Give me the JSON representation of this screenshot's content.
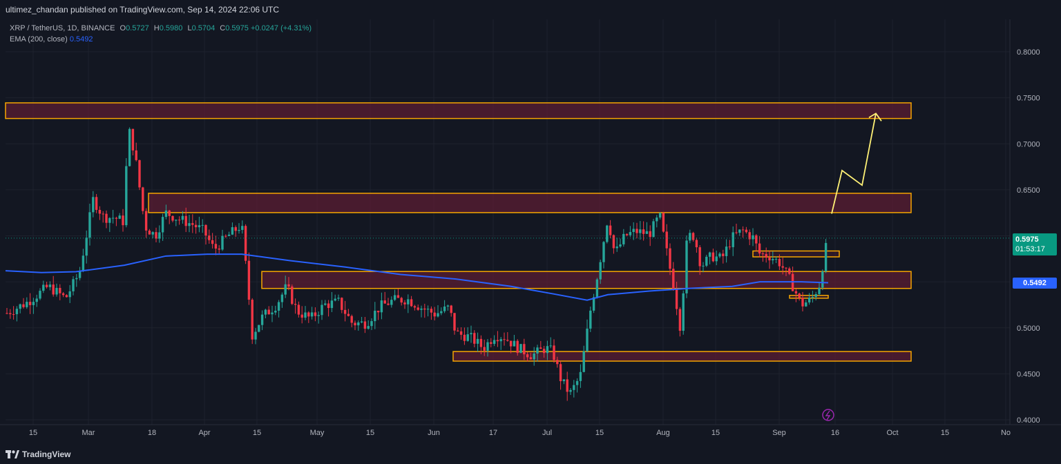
{
  "header": {
    "publish_text": "ultimez_chandan published on TradingView.com, Sep 14, 2024 22:06 UTC"
  },
  "legend": {
    "symbol": "XRP / TetherUS, 1D, BINANCE",
    "open_label": "O",
    "open": "0.5727",
    "high_label": "H",
    "high": "0.5980",
    "low_label": "L",
    "low": "0.5704",
    "close_label": "C",
    "close": "0.5975",
    "change": "+0.0247 (+4.31%)",
    "ema_label": "EMA (200, close)",
    "ema_value": "0.5492"
  },
  "price_scale": {
    "last_price": "0.5975",
    "countdown": "01:53:17",
    "ema_tag": "0.5492"
  },
  "footer": {
    "brand": "TradingView"
  },
  "colors": {
    "bull": "#26a69a",
    "bear": "#f23645",
    "ema": "#2962ff",
    "zone_border": "#f7a600",
    "zone_fill": "#5b1e33",
    "arrow": "#fff176",
    "background": "#131722"
  },
  "chart_data": {
    "type": "candlestick",
    "symbol": "XRP / TetherUS",
    "timeframe": "1D",
    "exchange": "BINANCE",
    "ylim": [
      0.4,
      0.8
    ],
    "y_ticks": [
      "0.8000",
      "0.7500",
      "0.7000",
      "0.6500",
      "0.5000",
      "0.4500",
      "0.4000"
    ],
    "x_ticks": [
      "15",
      "Mar",
      "18",
      "Apr",
      "15",
      "May",
      "15",
      "Jun",
      "17",
      "Jul",
      "15",
      "Aug",
      "15",
      "Sep",
      "16",
      "Oct",
      "15",
      "No"
    ],
    "ema": {
      "name": "EMA (200, close)",
      "last": 0.5492
    },
    "last_close": 0.5975,
    "zones": [
      {
        "low": 0.7275,
        "high": 0.7445
      },
      {
        "low": 0.6252,
        "high": 0.6462
      },
      {
        "low": 0.5428,
        "high": 0.5612
      },
      {
        "low": 0.4638,
        "high": 0.4742
      },
      {
        "low": 0.5771,
        "high": 0.5835
      },
      {
        "low": 0.5322,
        "high": 0.5352
      }
    ],
    "projection": [
      0.624,
      0.671,
      0.655,
      0.733
    ],
    "grid": true
  }
}
